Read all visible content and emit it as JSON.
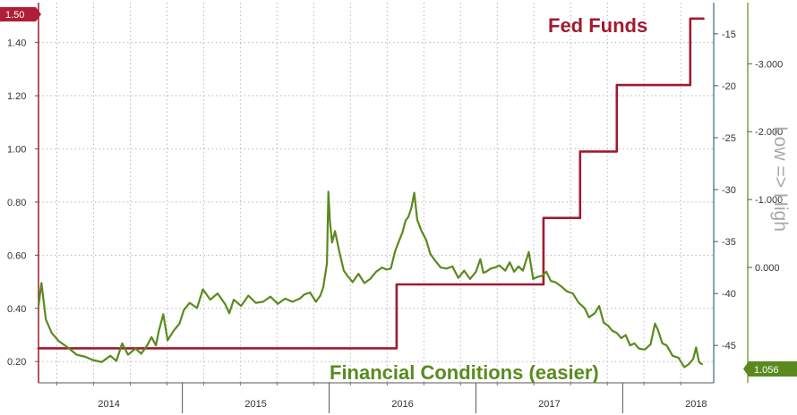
{
  "chart_data": {
    "type": "line",
    "annotations": {
      "fed": "Fed Funds",
      "fc": "Financial Conditions (easier)",
      "right_axis_label": "Low => High"
    },
    "colors": {
      "fed_funds": "#a01b2f",
      "financial_conditions": "#5a8a1e",
      "grid": "#b8b8b8",
      "badge_fed": "#b01e36",
      "badge_fc": "#5a8a1e"
    },
    "badges": {
      "fed": "1.50",
      "fc": "1.056"
    },
    "x_axis": {
      "range": [
        2013.52,
        2018.12
      ],
      "tick_labels": [
        "2014",
        "2015",
        "2016",
        "2017",
        "2018"
      ],
      "tick_positions": [
        2014.0,
        2015.0,
        2016.0,
        2017.0,
        2018.0
      ],
      "year_boundaries": [
        2014.5,
        2015.5,
        2016.5,
        2017.5
      ]
    },
    "y_left": {
      "range": [
        0.12,
        1.55
      ],
      "ticks": [
        "0.20",
        "0.40",
        "0.60",
        "0.80",
        "1.00",
        "1.20",
        "1.40"
      ],
      "tick_values": [
        0.2,
        0.4,
        0.6,
        0.8,
        1.0,
        1.2,
        1.4
      ]
    },
    "y_right_1": {
      "range": [
        -48.6,
        -12.0
      ],
      "ticks": [
        "-15",
        "-20",
        "-25",
        "-30",
        "-35",
        "-40",
        "-45"
      ],
      "tick_values": [
        -15,
        -20,
        -25,
        -30,
        -35,
        -40,
        -45
      ]
    },
    "y_right_2": {
      "range": [
        1.7,
        -3.9
      ],
      "ticks": [
        "-3.000",
        "-2.000",
        "-1.000",
        "0.000"
      ],
      "tick_values": [
        -3.0,
        -2.0,
        -1.0,
        0.0
      ]
    },
    "grid": true,
    "series": [
      {
        "key": "fed_funds",
        "axis": "left",
        "step": true,
        "points": [
          [
            2013.52,
            0.25
          ],
          [
            2015.96,
            0.25
          ],
          [
            2015.96,
            0.49
          ],
          [
            2016.96,
            0.49
          ],
          [
            2016.96,
            0.74
          ],
          [
            2017.21,
            0.74
          ],
          [
            2017.21,
            0.99
          ],
          [
            2017.46,
            0.99
          ],
          [
            2017.46,
            1.24
          ],
          [
            2017.96,
            1.24
          ],
          [
            2017.96,
            1.49
          ],
          [
            2018.05,
            1.49
          ]
        ]
      },
      {
        "key": "financial_conditions",
        "axis": "right_1",
        "points": [
          [
            2013.52,
            -41.2
          ],
          [
            2013.54,
            -39.0
          ],
          [
            2013.57,
            -42.5
          ],
          [
            2013.61,
            -43.8
          ],
          [
            2013.66,
            -44.6
          ],
          [
            2013.72,
            -45.2
          ],
          [
            2013.78,
            -45.9
          ],
          [
            2013.84,
            -46.1
          ],
          [
            2013.89,
            -46.4
          ],
          [
            2013.95,
            -46.6
          ],
          [
            2014.01,
            -46.0
          ],
          [
            2014.05,
            -46.5
          ],
          [
            2014.09,
            -44.8
          ],
          [
            2014.13,
            -45.9
          ],
          [
            2014.18,
            -45.3
          ],
          [
            2014.22,
            -45.8
          ],
          [
            2014.26,
            -45.0
          ],
          [
            2014.29,
            -44.2
          ],
          [
            2014.32,
            -45.0
          ],
          [
            2014.34,
            -43.6
          ],
          [
            2014.37,
            -42.0
          ],
          [
            2014.4,
            -44.5
          ],
          [
            2014.44,
            -43.6
          ],
          [
            2014.48,
            -42.9
          ],
          [
            2014.51,
            -41.6
          ],
          [
            2014.55,
            -40.9
          ],
          [
            2014.6,
            -41.4
          ],
          [
            2014.64,
            -39.6
          ],
          [
            2014.69,
            -40.6
          ],
          [
            2014.74,
            -40.0
          ],
          [
            2014.79,
            -41.0
          ],
          [
            2014.82,
            -41.9
          ],
          [
            2014.85,
            -40.6
          ],
          [
            2014.9,
            -41.2
          ],
          [
            2014.95,
            -40.2
          ],
          [
            2015.0,
            -40.9
          ],
          [
            2015.05,
            -40.8
          ],
          [
            2015.1,
            -40.3
          ],
          [
            2015.15,
            -41.0
          ],
          [
            2015.2,
            -40.5
          ],
          [
            2015.25,
            -40.8
          ],
          [
            2015.3,
            -40.5
          ],
          [
            2015.33,
            -40.1
          ],
          [
            2015.37,
            -39.9
          ],
          [
            2015.41,
            -40.8
          ],
          [
            2015.44,
            -40.2
          ],
          [
            2015.46,
            -39.4
          ],
          [
            2015.485,
            -37.1
          ],
          [
            2015.495,
            -30.2
          ],
          [
            2015.505,
            -33.0
          ],
          [
            2015.52,
            -35.1
          ],
          [
            2015.54,
            -34.0
          ],
          [
            2015.57,
            -36.0
          ],
          [
            2015.6,
            -37.8
          ],
          [
            2015.63,
            -38.4
          ],
          [
            2015.66,
            -38.9
          ],
          [
            2015.7,
            -38.1
          ],
          [
            2015.74,
            -39.0
          ],
          [
            2015.78,
            -38.6
          ],
          [
            2015.82,
            -37.9
          ],
          [
            2015.86,
            -37.5
          ],
          [
            2015.89,
            -37.7
          ],
          [
            2015.92,
            -37.6
          ],
          [
            2015.95,
            -35.9
          ],
          [
            2015.98,
            -34.8
          ],
          [
            2016.0,
            -34.1
          ],
          [
            2016.02,
            -33.0
          ],
          [
            2016.04,
            -32.6
          ],
          [
            2016.06,
            -31.8
          ],
          [
            2016.08,
            -30.3
          ],
          [
            2016.1,
            -32.9
          ],
          [
            2016.13,
            -34.0
          ],
          [
            2016.16,
            -34.8
          ],
          [
            2016.19,
            -36.2
          ],
          [
            2016.22,
            -36.8
          ],
          [
            2016.26,
            -37.5
          ],
          [
            2016.3,
            -37.6
          ],
          [
            2016.34,
            -37.4
          ],
          [
            2016.38,
            -38.5
          ],
          [
            2016.42,
            -37.8
          ],
          [
            2016.46,
            -38.6
          ],
          [
            2016.5,
            -37.9
          ],
          [
            2016.53,
            -36.7
          ],
          [
            2016.55,
            -38.0
          ],
          [
            2016.57,
            -37.9
          ],
          [
            2016.6,
            -37.6
          ],
          [
            2016.63,
            -37.5
          ],
          [
            2016.66,
            -37.3
          ],
          [
            2016.7,
            -37.8
          ],
          [
            2016.73,
            -37.0
          ],
          [
            2016.76,
            -37.9
          ],
          [
            2016.79,
            -37.4
          ],
          [
            2016.82,
            -37.8
          ],
          [
            2016.86,
            -36.0
          ],
          [
            2016.89,
            -38.6
          ],
          [
            2016.92,
            -38.4
          ],
          [
            2016.95,
            -38.3
          ],
          [
            2016.98,
            -37.9
          ],
          [
            2017.01,
            -38.8
          ],
          [
            2017.04,
            -38.9
          ],
          [
            2017.08,
            -39.3
          ],
          [
            2017.12,
            -39.8
          ],
          [
            2017.16,
            -40.0
          ],
          [
            2017.2,
            -40.9
          ],
          [
            2017.24,
            -41.4
          ],
          [
            2017.27,
            -42.3
          ],
          [
            2017.31,
            -41.9
          ],
          [
            2017.34,
            -41.2
          ],
          [
            2017.37,
            -42.8
          ],
          [
            2017.4,
            -43.1
          ],
          [
            2017.43,
            -43.6
          ],
          [
            2017.46,
            -43.8
          ],
          [
            2017.49,
            -44.3
          ],
          [
            2017.52,
            -44.0
          ],
          [
            2017.55,
            -45.0
          ],
          [
            2017.58,
            -44.8
          ],
          [
            2017.61,
            -45.3
          ],
          [
            2017.65,
            -45.4
          ],
          [
            2017.69,
            -44.9
          ],
          [
            2017.72,
            -42.9
          ],
          [
            2017.74,
            -43.5
          ],
          [
            2017.77,
            -44.8
          ],
          [
            2017.8,
            -45.0
          ],
          [
            2017.84,
            -46.0
          ],
          [
            2017.88,
            -46.2
          ],
          [
            2017.92,
            -47.1
          ],
          [
            2017.95,
            -46.8
          ],
          [
            2017.98,
            -46.3
          ],
          [
            2018.0,
            -45.2
          ],
          [
            2018.02,
            -46.6
          ],
          [
            2018.04,
            -46.8
          ]
        ]
      }
    ]
  }
}
